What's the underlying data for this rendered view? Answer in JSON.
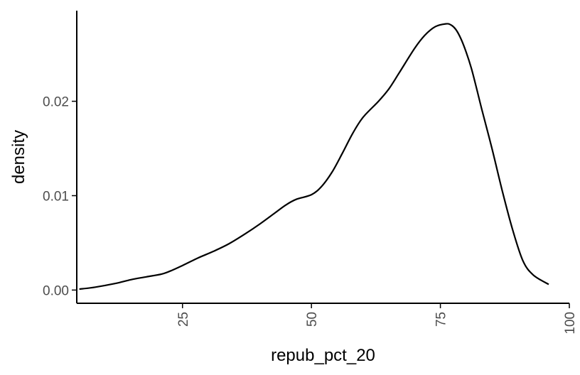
{
  "chart_data": {
    "type": "line",
    "title": "",
    "xlabel": "repub_pct_20",
    "ylabel": "density",
    "xlim": [
      4.5,
      100
    ],
    "ylim": [
      -0.0014,
      0.0296
    ],
    "x_ticks": [
      25,
      50,
      75,
      100
    ],
    "x_tick_labels": [
      "25",
      "50",
      "75",
      "100"
    ],
    "y_ticks": [
      0.0,
      0.01,
      0.02
    ],
    "y_tick_labels": [
      "0.00",
      "0.01",
      "0.02"
    ],
    "grid": false,
    "legend": "none",
    "series": [
      {
        "color": "#000000",
        "x": [
          5,
          8,
          12,
          15,
          18,
          21,
          23,
          25,
          28,
          31,
          34,
          37,
          40,
          43,
          45,
          47,
          50,
          52,
          54,
          56,
          58,
          60,
          63,
          65,
          67,
          70,
          72,
          74,
          76,
          77,
          78,
          79,
          80,
          81,
          82,
          83,
          85,
          87,
          89,
          91,
          93,
          96
        ],
        "y": [
          0.0001,
          0.0003,
          0.0007,
          0.0011,
          0.0014,
          0.0017,
          0.0021,
          0.0026,
          0.0034,
          0.0041,
          0.0049,
          0.0059,
          0.007,
          0.0082,
          0.009,
          0.0096,
          0.0101,
          0.011,
          0.0125,
          0.0145,
          0.0166,
          0.0183,
          0.02,
          0.0213,
          0.023,
          0.0256,
          0.027,
          0.0279,
          0.0282,
          0.0281,
          0.0276,
          0.0266,
          0.0252,
          0.0235,
          0.0214,
          0.0192,
          0.015,
          0.0105,
          0.0064,
          0.0031,
          0.0016,
          0.0006
        ]
      }
    ]
  }
}
